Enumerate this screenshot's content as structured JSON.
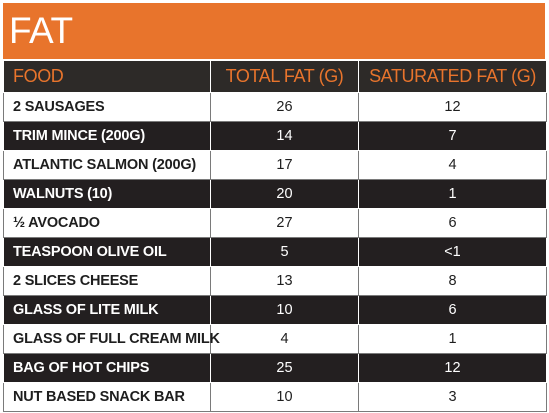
{
  "colors": {
    "accent": "#e8742c",
    "header_bg": "#2d2a28",
    "dark_row": "#231f20"
  },
  "title": "FAT",
  "headers": {
    "food": "FOOD",
    "total": "TOTAL FAT (G)",
    "saturated": "SATURATED FAT (G)"
  },
  "rows": [
    {
      "food": "2 SAUSAGES",
      "total": "26",
      "saturated": "12"
    },
    {
      "food": "TRIM MINCE (200G)",
      "total": "14",
      "saturated": "7"
    },
    {
      "food": "ATLANTIC SALMON (200G)",
      "total": "17",
      "saturated": "4"
    },
    {
      "food": "WALNUTS (10)",
      "total": "20",
      "saturated": "1"
    },
    {
      "food": "½ AVOCADO",
      "total": "27",
      "saturated": "6"
    },
    {
      "food": "TEASPOON OLIVE OIL",
      "total": "5",
      "saturated": "<1"
    },
    {
      "food": "2 SLICES CHEESE",
      "total": "13",
      "saturated": "8"
    },
    {
      "food": "GLASS OF LITE MILK",
      "total": "10",
      "saturated": "6"
    },
    {
      "food": "GLASS OF FULL CREAM MILK",
      "total": "4",
      "saturated": "1"
    },
    {
      "food": "BAG OF HOT CHIPS",
      "total": "25",
      "saturated": "12"
    },
    {
      "food": "NUT BASED SNACK BAR",
      "total": "10",
      "saturated": "3"
    }
  ]
}
